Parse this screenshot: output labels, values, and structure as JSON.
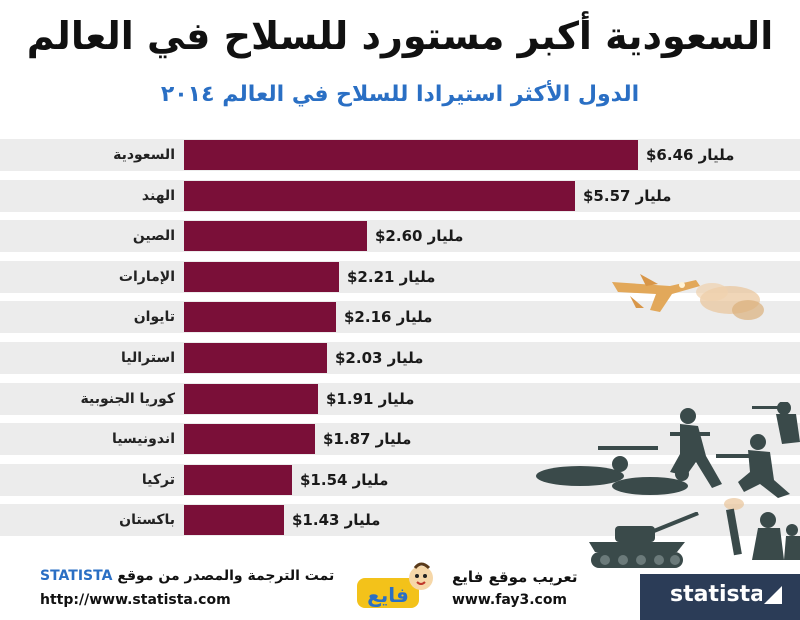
{
  "title": "السعودية أكبر مستورد للسلاح في العالم",
  "subtitle": "الدول الأكثر استيرادا للسلاح في العالم ٢٠١٤",
  "chart_data": {
    "type": "bar",
    "orientation": "horizontal",
    "categories": [
      "السعودية",
      "الهند",
      "الصين",
      "الإمارات",
      "تايوان",
      "استراليا",
      "كوريا الجنوبية",
      "اندونيسيا",
      "تركيا",
      "باكستان"
    ],
    "values": [
      6.46,
      5.57,
      2.6,
      2.21,
      2.16,
      2.03,
      1.91,
      1.87,
      1.54,
      1.43
    ],
    "value_labels": [
      "$6.46 مليار",
      "$5.57 مليار",
      "$2.60 مليار",
      "$2.21 مليار",
      "$2.16 مليار",
      "$2.03 مليار",
      "$1.91 مليار",
      "$1.87 مليار",
      "$1.54 مليار",
      "$1.43 مليار"
    ],
    "bar_color": "#7a0f38",
    "row_background": "#ececec",
    "grid": false,
    "legend": "none",
    "xlim": [
      0,
      6.46
    ]
  },
  "footer": {
    "credit_text": "تمت الترجمة والمصدر من موقع",
    "credit_brand": "STATISTA",
    "credit_url": "http://www.statista.com",
    "translation_text": "تعريب موقع فايع",
    "translation_url": "www.fay3.com",
    "fay_logo_text": "فايع",
    "statista_logo_text": "statista"
  },
  "colors": {
    "title": "#111111",
    "subtitle": "#2a6fc4",
    "statista_badge": "#2b3c57",
    "silhouette": "#3a4a4a",
    "jet": "#e2a85a"
  },
  "icons": [
    "fighter-jet-icon",
    "soldiers-silhouette",
    "tank-icon",
    "mortar-crew-icon",
    "statista-logo-icon",
    "fay3-logo"
  ]
}
